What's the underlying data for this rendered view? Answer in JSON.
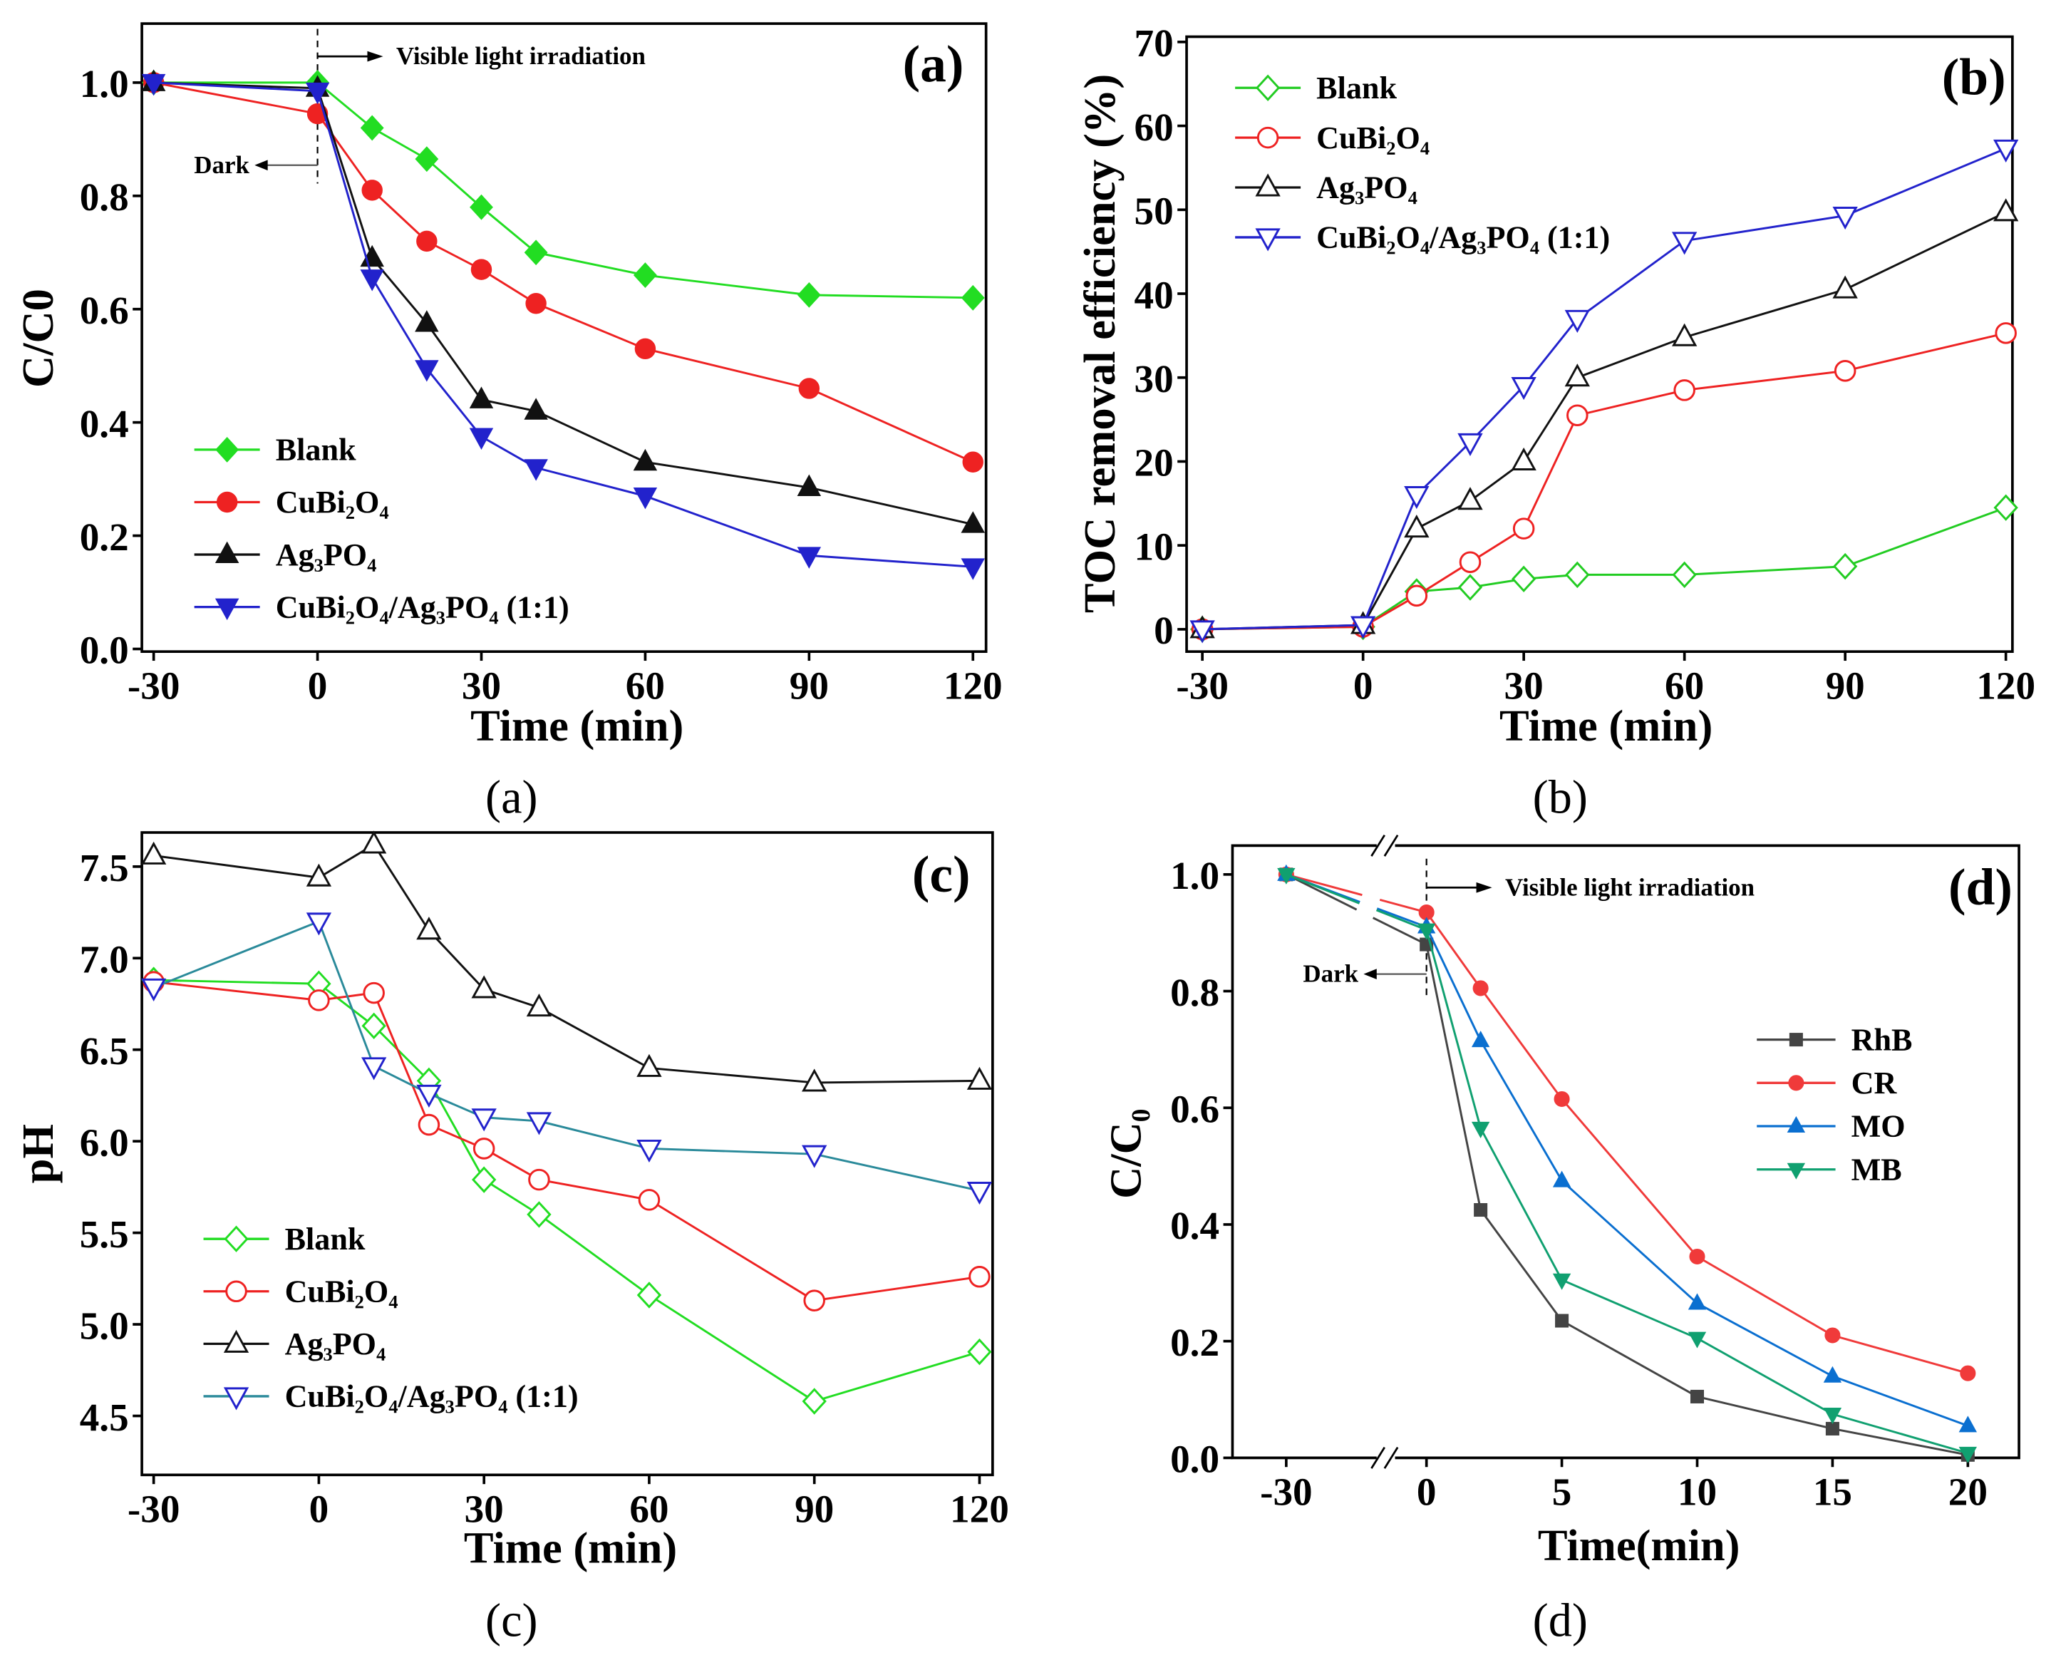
{
  "chart_data": [
    {
      "type": "line",
      "panel_label": "(a)",
      "caption": "(a)",
      "xlabel": "Time (min)",
      "ylabel": "C/C0",
      "x": [
        -30,
        0,
        10,
        20,
        30,
        40,
        60,
        90,
        120
      ],
      "xticks": [
        -30,
        0,
        30,
        60,
        90,
        120
      ],
      "yticks": [
        "0.0",
        "0.2",
        "0.4",
        "0.6",
        "0.8",
        "1.0"
      ],
      "xlim": [
        -30,
        120
      ],
      "ylim": [
        0,
        1.0
      ],
      "legend_position": "bottom-left",
      "annotations": [
        "Visible light irradiation",
        "Dark"
      ],
      "marker_style": "filled",
      "series": [
        {
          "name": "Blank",
          "color": "#22dd22",
          "marker": "diamond",
          "values": [
            1.0,
            1.0,
            0.92,
            0.865,
            0.78,
            0.7,
            0.66,
            0.625,
            0.62
          ]
        },
        {
          "name": "CuBi₂O₄",
          "color": "#ee2222",
          "marker": "circle",
          "values": [
            1.0,
            0.945,
            0.81,
            0.72,
            0.67,
            0.61,
            0.53,
            0.46,
            0.33
          ]
        },
        {
          "name": "Ag₃PO₄",
          "color": "#111111",
          "marker": "triangle-up",
          "values": [
            1.0,
            0.99,
            0.69,
            0.575,
            0.44,
            0.42,
            0.33,
            0.285,
            0.22
          ]
        },
        {
          "name": "CuBi₂O₄/Ag₃PO₄ (1:1)",
          "color": "#2222cc",
          "marker": "triangle-down",
          "values": [
            1.0,
            0.985,
            0.655,
            0.495,
            0.375,
            0.32,
            0.27,
            0.165,
            0.145
          ]
        }
      ]
    },
    {
      "type": "line",
      "panel_label": "(b)",
      "caption": "(b)",
      "xlabel": "Time (min)",
      "ylabel": "TOC removal efficiency (%)",
      "x": [
        -30,
        0,
        10,
        20,
        30,
        40,
        60,
        90,
        120
      ],
      "xticks": [
        -30,
        0,
        30,
        60,
        90,
        120
      ],
      "yticks": [
        "0",
        "10",
        "20",
        "30",
        "40",
        "50",
        "60",
        "70"
      ],
      "xlim": [
        -30,
        120
      ],
      "ylim": [
        0,
        70
      ],
      "legend_position": "top-left",
      "marker_style": "open",
      "series": [
        {
          "name": "Blank",
          "color": "#22cc22",
          "marker": "diamond",
          "values": [
            0,
            0.3,
            4.5,
            5,
            6,
            6.5,
            6.5,
            7.5,
            14.5
          ]
        },
        {
          "name": "CuBi₂O₄",
          "color": "#ee2222",
          "marker": "circle",
          "values": [
            0,
            0.3,
            4,
            8,
            12,
            25.5,
            28.5,
            30.8,
            35.3
          ]
        },
        {
          "name": "Ag₃PO₄",
          "color": "#111111",
          "marker": "triangle-up",
          "values": [
            0,
            0.5,
            12,
            15.3,
            20,
            30,
            34.8,
            40.5,
            49.7
          ]
        },
        {
          "name": "CuBi₂O₄/Ag₃PO₄ (1:1)",
          "color": "#2222cc",
          "marker": "triangle-down",
          "values": [
            0,
            0.5,
            16,
            22.3,
            29,
            37,
            46.3,
            49.3,
            57.3
          ]
        }
      ]
    },
    {
      "type": "line",
      "panel_label": "(c)",
      "caption": "(c)",
      "xlabel": "Time (min)",
      "ylabel": "pH",
      "x": [
        -30,
        0,
        10,
        20,
        30,
        40,
        60,
        90,
        120
      ],
      "xticks": [
        -30,
        0,
        30,
        60,
        90,
        120
      ],
      "yticks": [
        "4.5",
        "5.0",
        "5.5",
        "6.0",
        "6.5",
        "7.0",
        "7.5"
      ],
      "xlim": [
        -30,
        120
      ],
      "ylim": [
        4.5,
        7.5
      ],
      "legend_position": "bottom-left",
      "marker_style": "open",
      "series": [
        {
          "name": "Blank",
          "color": "#22dd22",
          "marker": "diamond",
          "values": [
            6.88,
            6.86,
            6.63,
            6.33,
            5.79,
            5.6,
            5.16,
            4.58,
            4.85
          ]
        },
        {
          "name": "CuBi₂O₄",
          "color": "#ee2222",
          "marker": "circle",
          "values": [
            6.87,
            6.77,
            6.81,
            6.09,
            5.96,
            5.79,
            5.68,
            5.13,
            5.26
          ]
        },
        {
          "name": "Ag₃PO₄",
          "color": "#111111",
          "marker": "triangle-up",
          "values": [
            7.56,
            7.44,
            7.62,
            7.15,
            6.83,
            6.73,
            6.4,
            6.32,
            6.33
          ]
        },
        {
          "name": "CuBi₂O₄/Ag₃PO₄ (1:1)",
          "color": "#2a8a9a",
          "marker_color": "#2222cc",
          "marker": "triangle-down",
          "values": [
            6.84,
            7.2,
            6.41,
            6.26,
            6.13,
            6.11,
            5.96,
            5.93,
            5.73
          ]
        }
      ]
    },
    {
      "type": "line",
      "panel_label": "(d)",
      "caption": "(d)",
      "xlabel": "Time(min)",
      "ylabel": "C/C₀",
      "x": [
        -30,
        0,
        2,
        5,
        10,
        15,
        20
      ],
      "xticks": [
        -30,
        0,
        5,
        10,
        15,
        20
      ],
      "yticks": [
        "0.0",
        "0.2",
        "0.4",
        "0.6",
        "0.8",
        "1.0"
      ],
      "xlim": [
        -30,
        20
      ],
      "ylim": [
        0,
        1.0
      ],
      "axis_break": "between -30 and 0",
      "legend_position": "right",
      "annotations": [
        "Visible light irradiation",
        "Dark"
      ],
      "marker_style": "filled",
      "series": [
        {
          "name": "RhB",
          "color": "#444444",
          "marker": "square",
          "values": [
            1.0,
            0.88,
            0.425,
            0.235,
            0.105,
            0.05,
            0.005
          ]
        },
        {
          "name": "CR",
          "color": "#f03a3a",
          "marker": "circle",
          "values": [
            1.0,
            0.935,
            0.805,
            0.615,
            0.345,
            0.21,
            0.145
          ]
        },
        {
          "name": "MO",
          "color": "#0a6fd0",
          "marker": "triangle-up",
          "values": [
            1.0,
            0.91,
            0.715,
            0.475,
            0.265,
            0.14,
            0.055
          ]
        },
        {
          "name": "MB",
          "color": "#10a070",
          "marker": "triangle-down",
          "values": [
            1.0,
            0.905,
            0.565,
            0.305,
            0.205,
            0.075,
            0.008
          ]
        }
      ]
    }
  ]
}
